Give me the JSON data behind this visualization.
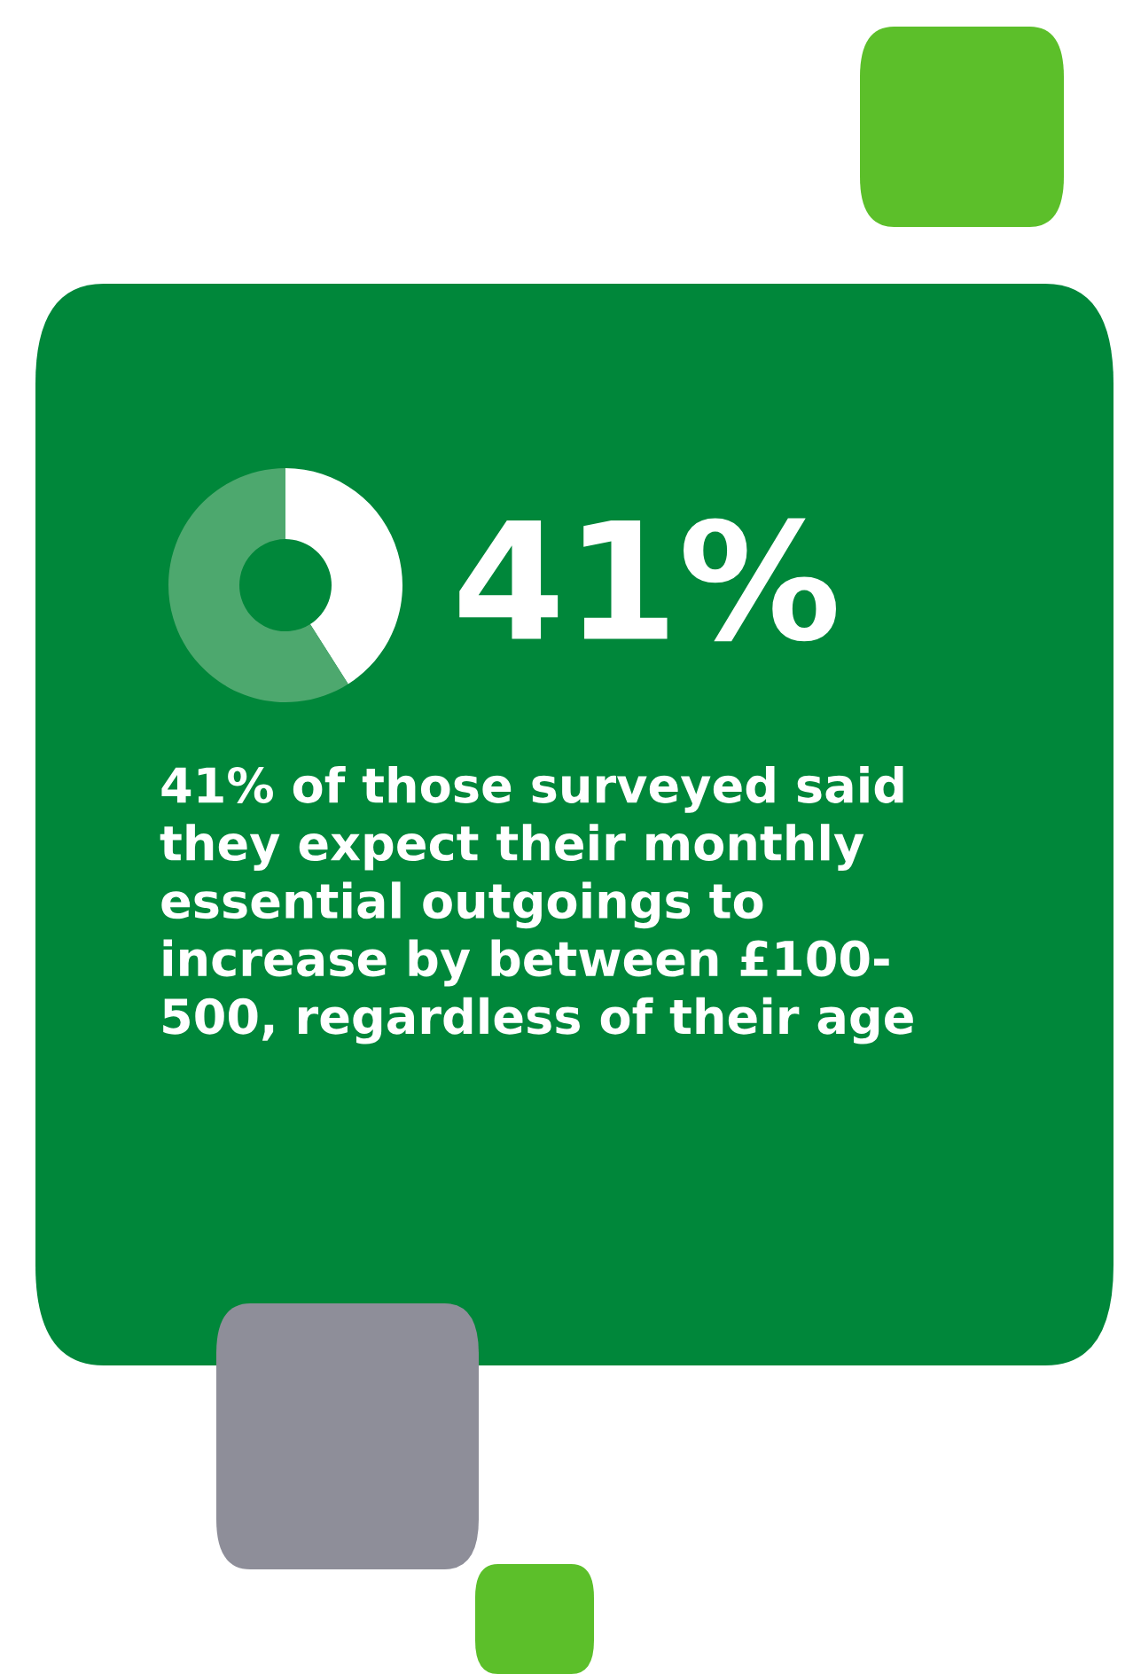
{
  "chart_data": {
    "type": "donut",
    "title": "41%",
    "categories": [
      null,
      null
    ],
    "values": [
      41,
      59
    ],
    "colors": [
      "#ffffff",
      "#4da86e"
    ],
    "annotations": [
      "41% of those surveyed said\nthey expect their monthly\nessential outgoings to\nincrease by between £100-\n500, regardless of their age"
    ]
  }
}
